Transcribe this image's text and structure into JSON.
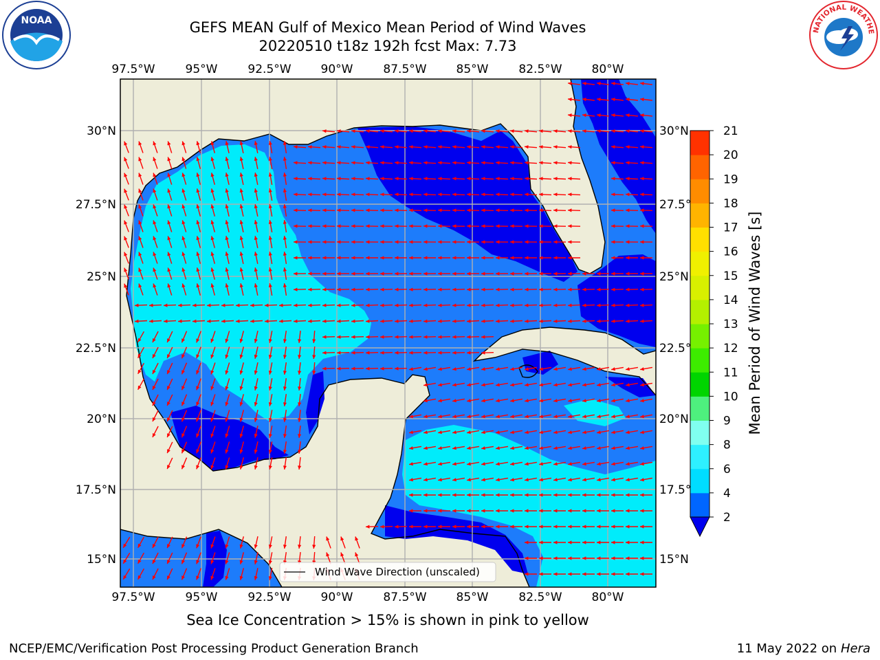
{
  "title_line1": "GEFS MEAN Gulf of Mexico Mean Period of Wind Waves",
  "title_line2": "20220510 t18z 192h fcst   Max: 7.73",
  "lon_ticks": [
    "97.5°W",
    "95°W",
    "92.5°W",
    "90°W",
    "87.5°W",
    "85°W",
    "82.5°W",
    "80°W"
  ],
  "lat_ticks": [
    "30°N",
    "27.5°N",
    "25°N",
    "22.5°N",
    "20°N",
    "17.5°N",
    "15°N"
  ],
  "colorbar": {
    "label": "Mean Period of Wind Waves [s]",
    "ticks": [
      "2",
      "4",
      "6",
      "8",
      "9",
      "10",
      "11",
      "12",
      "13",
      "14",
      "15",
      "16",
      "17",
      "18",
      "19",
      "20",
      "21"
    ],
    "colors": [
      "#0066ff",
      "#00ddff",
      "#2ef0ff",
      "#80fff0",
      "#4ef07e",
      "#00d500",
      "#3dec00",
      "#76f000",
      "#b4f000",
      "#d8f000",
      "#f0f000",
      "#ffe000",
      "#ffb400",
      "#ff8c00",
      "#ff6400",
      "#ff3200",
      "#ff0000"
    ],
    "under_color": "#0000ee"
  },
  "legend": {
    "label": "Wind Wave Direction (unscaled)"
  },
  "colors": {
    "land": "#eeedd9",
    "period_lt2": "#0000ee",
    "period_2_4": "#1d7cfb",
    "period_4_6": "#00ecfb",
    "arrow": "#ff0000",
    "grid": "#b0b0b0"
  },
  "footer": {
    "ice_note": "Sea Ice Concentration > 15% is shown in pink to yellow",
    "credit": "NCEP/EMC/Verification Post Processing Product Generation Branch",
    "date": "11 May 2022 on",
    "host": "Hera"
  },
  "logos": {
    "noaa": "NOAA",
    "nws": "NATIONAL WEATHER SERVICE"
  }
}
